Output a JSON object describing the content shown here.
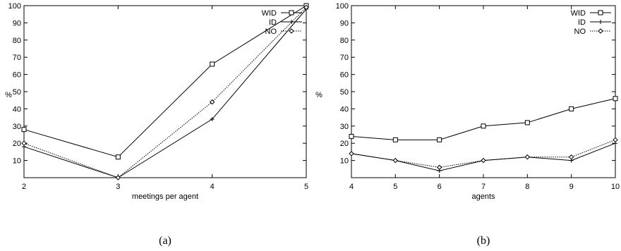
{
  "chart_data": [
    {
      "type": "line",
      "caption": "(a)",
      "xlabel": "meetings per agent",
      "ylabel": "%",
      "xlim": [
        2,
        5
      ],
      "ylim": [
        0,
        100
      ],
      "x": [
        2,
        3,
        4,
        5
      ],
      "xticks": [
        "2",
        "3",
        "4",
        "5"
      ],
      "yticks": [
        "10",
        "20",
        "30",
        "40",
        "50",
        "60",
        "70",
        "80",
        "90",
        "100"
      ],
      "grid": false,
      "legend": "top-right",
      "series": [
        {
          "name": "WID",
          "marker": "square",
          "dash": "solid",
          "values": [
            28,
            12,
            66,
            100
          ]
        },
        {
          "name": "ID",
          "marker": "plus",
          "dash": "solid",
          "values": [
            18,
            0,
            34,
            98
          ]
        },
        {
          "name": "NO",
          "marker": "diamond",
          "dash": "dotted",
          "values": [
            20,
            0,
            44,
            99
          ]
        }
      ]
    },
    {
      "type": "line",
      "caption": "(b)",
      "xlabel": "agents",
      "ylabel": "%",
      "xlim": [
        4,
        10
      ],
      "ylim": [
        0,
        100
      ],
      "x": [
        4,
        5,
        6,
        7,
        8,
        9,
        10
      ],
      "xticks": [
        "4",
        "5",
        "6",
        "7",
        "8",
        "9",
        "10"
      ],
      "yticks": [
        "10",
        "20",
        "30",
        "40",
        "50",
        "60",
        "70",
        "80",
        "90",
        "100"
      ],
      "grid": false,
      "legend": "top-right",
      "series": [
        {
          "name": "WID",
          "marker": "square",
          "dash": "solid",
          "values": [
            24,
            22,
            22,
            30,
            32,
            40,
            46
          ]
        },
        {
          "name": "ID",
          "marker": "plus",
          "dash": "solid",
          "values": [
            14,
            10,
            4,
            10,
            12,
            10,
            20
          ]
        },
        {
          "name": "NO",
          "marker": "diamond",
          "dash": "dotted",
          "values": [
            14,
            10,
            6,
            10,
            12,
            12,
            22
          ]
        }
      ]
    }
  ]
}
